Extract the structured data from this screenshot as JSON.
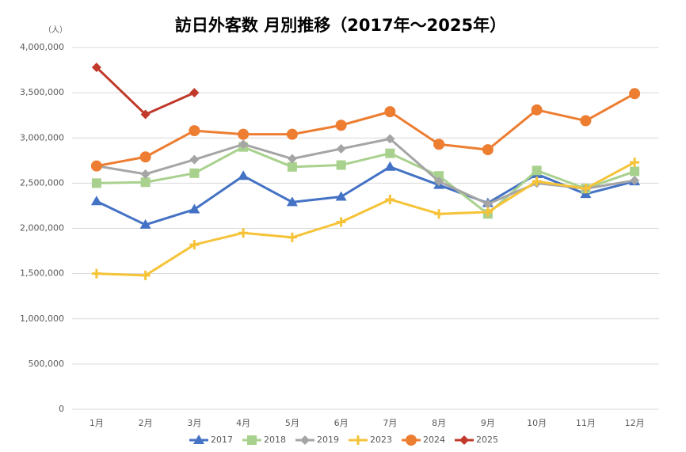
{
  "chart_data": {
    "type": "line",
    "title": "訪日外客数 月別推移（2017年～2025年）",
    "y_unit": "（人）",
    "categories": [
      "1月",
      "2月",
      "3月",
      "4月",
      "5月",
      "6月",
      "7月",
      "8月",
      "9月",
      "10月",
      "11月",
      "12月"
    ],
    "series": [
      {
        "name": "2017",
        "color": "#4472c4",
        "marker": "triangle",
        "values": [
          2300000,
          2040000,
          2210000,
          2580000,
          2290000,
          2350000,
          2680000,
          2480000,
          2280000,
          2600000,
          2380000,
          2520000
        ]
      },
      {
        "name": "2018",
        "color": "#a9d18e",
        "marker": "square",
        "values": [
          2500000,
          2510000,
          2610000,
          2900000,
          2680000,
          2700000,
          2830000,
          2580000,
          2160000,
          2640000,
          2440000,
          2630000
        ]
      },
      {
        "name": "2019",
        "color": "#a5a5a5",
        "marker": "diamond",
        "values": [
          2690000,
          2600000,
          2760000,
          2930000,
          2770000,
          2880000,
          2990000,
          2520000,
          2270000,
          2500000,
          2440000,
          2530000
        ]
      },
      {
        "name": "2023",
        "color": "#f6c338",
        "marker": "plus",
        "values": [
          1500000,
          1480000,
          1820000,
          1950000,
          1900000,
          2070000,
          2320000,
          2160000,
          2180000,
          2520000,
          2440000,
          2730000
        ]
      },
      {
        "name": "2024",
        "color": "#ed7d31",
        "marker": "circle",
        "values": [
          2690000,
          2790000,
          3080000,
          3040000,
          3040000,
          3140000,
          3290000,
          2930000,
          2870000,
          3310000,
          3190000,
          3490000
        ]
      },
      {
        "name": "2025",
        "color": "#c0392b",
        "marker": "diamond",
        "values": [
          3780000,
          3260000,
          3500000,
          null,
          null,
          null,
          null,
          null,
          null,
          null,
          null,
          null
        ]
      }
    ],
    "ylim": [
      0,
      4000000
    ],
    "yticks": [
      0,
      {
        "value": 500000,
        "label": "500,000"
      },
      {
        "value": 1000000,
        "label": "1,000,000"
      },
      {
        "value": 1500000,
        "label": "1,500,000"
      },
      {
        "value": 2000000,
        "label": "2,000,000"
      },
      {
        "value": 2500000,
        "label": "2,500,000"
      },
      {
        "value": 3000000,
        "label": "3,000,000"
      },
      {
        "value": 3500000,
        "label": "3,500,000"
      },
      {
        "value": 4000000,
        "label": "4,000,000"
      }
    ],
    "grid": true,
    "legend": "bottom"
  }
}
